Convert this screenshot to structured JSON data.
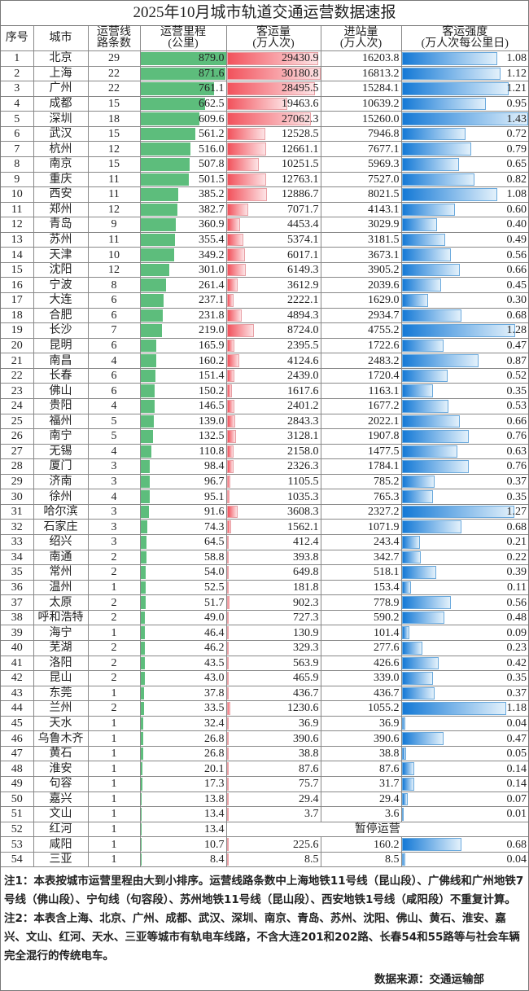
{
  "title": "2025年10月城市轨道交通运营数据速报",
  "headers": [
    "序号",
    "城市",
    "运营线\n路条数",
    "运营里程\n(公里)",
    "客运量\n(万人次)",
    "进站量\n(万人次)",
    "客运强度\n(万人次每公里日)"
  ],
  "colors": {
    "mileage_bar": "#5dbd7c",
    "ridership_bar": "#f2525c",
    "intensity_bar": "#1479d6"
  },
  "suspended_label": "暂停运营",
  "rows": [
    [
      "1",
      "北京",
      "29",
      "879.0",
      "29430.9",
      "16203.8",
      "1.08"
    ],
    [
      "2",
      "上海",
      "22",
      "871.6",
      "30180.8",
      "16813.2",
      "1.12"
    ],
    [
      "3",
      "广州",
      "22",
      "761.1",
      "28495.5",
      "15284.1",
      "1.21"
    ],
    [
      "4",
      "成都",
      "15",
      "662.5",
      "19463.6",
      "10639.2",
      "0.95"
    ],
    [
      "5",
      "深圳",
      "18",
      "609.6",
      "27062.3",
      "15260.0",
      "1.43"
    ],
    [
      "6",
      "武汉",
      "15",
      "561.2",
      "12528.5",
      "7946.8",
      "0.72"
    ],
    [
      "7",
      "杭州",
      "12",
      "516.0",
      "12661.1",
      "7677.1",
      "0.79"
    ],
    [
      "8",
      "南京",
      "15",
      "507.8",
      "10251.5",
      "5969.3",
      "0.65"
    ],
    [
      "9",
      "重庆",
      "11",
      "501.5",
      "12763.1",
      "7527.0",
      "0.82"
    ],
    [
      "10",
      "西安",
      "11",
      "385.2",
      "12886.7",
      "8021.5",
      "1.08"
    ],
    [
      "11",
      "郑州",
      "12",
      "382.7",
      "7071.7",
      "4143.1",
      "0.60"
    ],
    [
      "12",
      "青岛",
      "9",
      "360.9",
      "4453.4",
      "3029.9",
      "0.40"
    ],
    [
      "13",
      "苏州",
      "11",
      "355.4",
      "5374.1",
      "3181.5",
      "0.49"
    ],
    [
      "14",
      "天津",
      "10",
      "349.2",
      "6017.1",
      "3673.1",
      "0.56"
    ],
    [
      "15",
      "沈阳",
      "12",
      "301.0",
      "6149.3",
      "3905.2",
      "0.66"
    ],
    [
      "16",
      "宁波",
      "8",
      "261.4",
      "3612.9",
      "2039.6",
      "0.45"
    ],
    [
      "17",
      "大连",
      "6",
      "237.1",
      "2222.1",
      "1629.0",
      "0.30"
    ],
    [
      "18",
      "合肥",
      "6",
      "231.8",
      "4894.3",
      "2934.7",
      "0.68"
    ],
    [
      "19",
      "长沙",
      "7",
      "219.0",
      "8724.0",
      "4755.2",
      "1.28"
    ],
    [
      "20",
      "昆明",
      "6",
      "165.9",
      "2395.5",
      "1722.6",
      "0.47"
    ],
    [
      "21",
      "南昌",
      "4",
      "160.2",
      "4124.6",
      "2483.2",
      "0.87"
    ],
    [
      "22",
      "长春",
      "6",
      "151.4",
      "2439.0",
      "1720.4",
      "0.52"
    ],
    [
      "23",
      "佛山",
      "6",
      "150.2",
      "1617.6",
      "1163.1",
      "0.35"
    ],
    [
      "24",
      "贵阳",
      "4",
      "146.5",
      "2401.2",
      "1677.2",
      "0.53"
    ],
    [
      "25",
      "福州",
      "5",
      "139.0",
      "2843.3",
      "2022.1",
      "0.66"
    ],
    [
      "26",
      "南宁",
      "5",
      "132.5",
      "3128.1",
      "1907.8",
      "0.76"
    ],
    [
      "27",
      "无锡",
      "4",
      "110.8",
      "2158.0",
      "1477.5",
      "0.63"
    ],
    [
      "28",
      "厦门",
      "3",
      "98.4",
      "2326.3",
      "1784.1",
      "0.76"
    ],
    [
      "29",
      "济南",
      "3",
      "96.7",
      "1105.5",
      "785.2",
      "0.37"
    ],
    [
      "30",
      "徐州",
      "4",
      "95.1",
      "1035.3",
      "765.3",
      "0.35"
    ],
    [
      "31",
      "哈尔滨",
      "3",
      "91.6",
      "3608.3",
      "2327.2",
      "1.27"
    ],
    [
      "32",
      "石家庄",
      "3",
      "74.3",
      "1562.1",
      "1071.9",
      "0.68"
    ],
    [
      "33",
      "绍兴",
      "3",
      "64.5",
      "412.4",
      "243.4",
      "0.21"
    ],
    [
      "34",
      "南通",
      "2",
      "58.8",
      "393.8",
      "342.7",
      "0.22"
    ],
    [
      "35",
      "常州",
      "2",
      "54.0",
      "649.8",
      "518.1",
      "0.39"
    ],
    [
      "36",
      "温州",
      "1",
      "52.5",
      "181.8",
      "153.4",
      "0.11"
    ],
    [
      "37",
      "太原",
      "2",
      "51.7",
      "902.3",
      "778.9",
      "0.56"
    ],
    [
      "38",
      "呼和浩特",
      "2",
      "49.0",
      "727.3",
      "590.2",
      "0.48"
    ],
    [
      "39",
      "海宁",
      "1",
      "46.4",
      "130.9",
      "101.4",
      "0.09"
    ],
    [
      "40",
      "芜湖",
      "2",
      "46.2",
      "329.3",
      "277.6",
      "0.23"
    ],
    [
      "41",
      "洛阳",
      "2",
      "43.5",
      "563.9",
      "426.6",
      "0.42"
    ],
    [
      "42",
      "昆山",
      "2",
      "43.0",
      "465.9",
      "339.0",
      "0.35"
    ],
    [
      "43",
      "东莞",
      "1",
      "37.8",
      "436.7",
      "436.7",
      "0.37"
    ],
    [
      "44",
      "兰州",
      "2",
      "33.5",
      "1230.6",
      "1055.2",
      "1.18"
    ],
    [
      "45",
      "天水",
      "1",
      "32.4",
      "36.9",
      "36.9",
      "0.04"
    ],
    [
      "46",
      "乌鲁木齐",
      "1",
      "26.8",
      "390.6",
      "390.6",
      "0.47"
    ],
    [
      "47",
      "黄石",
      "1",
      "26.8",
      "38.8",
      "38.8",
      "0.05"
    ],
    [
      "48",
      "淮安",
      "1",
      "20.1",
      "87.6",
      "87.6",
      "0.14"
    ],
    [
      "49",
      "句容",
      "1",
      "17.3",
      "75.7",
      "31.7",
      "0.14"
    ],
    [
      "50",
      "嘉兴",
      "1",
      "13.8",
      "29.4",
      "29.4",
      "0.07"
    ],
    [
      "51",
      "文山",
      "1",
      "13.4",
      "3.7",
      "3.6",
      "0.01"
    ],
    [
      "52",
      "红河",
      "1",
      "13.4",
      null,
      null,
      null
    ],
    [
      "53",
      "咸阳",
      "1",
      "10.7",
      "225.6",
      "160.2",
      "0.68"
    ],
    [
      "54",
      "三亚",
      "1",
      "8.4",
      "8.5",
      "8.5",
      "0.04"
    ]
  ],
  "notes": {
    "note1": "注1：本表按城市运营里程由大到小排序。运营线路条数中上海地铁11号线（昆山段）、广佛线和广州地铁7号线（佛山段）、宁句线（句容段）、苏州地铁11号线（昆山段）、西安地铁1号线（咸阳段）不重复计算。",
    "note2": "注2：本表含上海、北京、广州、成都、武汉、深圳、南京、青岛、苏州、沈阳、佛山、黄石、淮安、嘉兴、文山、红河、天水、三亚等城市有轨电车线路，不含大连201和202路、长春54和55路等与社会车辆完全混行的传统电车。",
    "source": "数据来源：交通运输部"
  }
}
